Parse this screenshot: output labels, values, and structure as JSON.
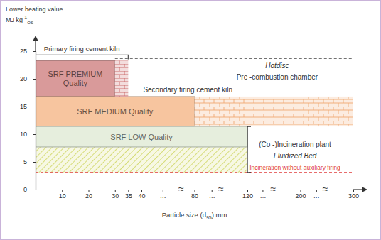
{
  "chart_data": {
    "type": "range",
    "ylabel": "Lower heating value",
    "yunit": {
      "text": "MJ kg",
      "sup": "-1",
      "sub": "OS"
    },
    "xlabel": {
      "text": "Particle size (d",
      "sub": "95",
      "after": ") mm"
    },
    "xlim": [
      0,
      300
    ],
    "ylim": [
      0,
      25
    ],
    "xticks": [
      10,
      20,
      30,
      35,
      40,
      {
        "value": 56,
        "label": "…"
      },
      80,
      {
        "value": 93,
        "label": "…"
      },
      120,
      {
        "value": 143,
        "label": "…"
      },
      200,
      {
        "value": 230,
        "label": "…"
      },
      300
    ],
    "yticks": [
      0,
      5,
      10,
      15,
      20,
      25
    ],
    "x_breaks": [
      {
        "value": 70,
        "label": "≈"
      },
      {
        "value": 100,
        "label": "≈"
      },
      {
        "value": 159,
        "label": "≈"
      },
      {
        "value": 247,
        "label": "≈"
      }
    ],
    "series": [
      {
        "name": "SRF PREMIUM Quality",
        "type": "box",
        "color": "#d99a9a",
        "x": [
          0,
          30
        ],
        "values": [
          16.8,
          23.3
        ]
      },
      {
        "type": "brick",
        "color": "#c86464",
        "x": [
          30,
          35
        ],
        "values": [
          16.8,
          23.3
        ]
      },
      {
        "name": "SRF MEDIUM Quality",
        "type": "box",
        "color": "#f7c59f",
        "x": [
          0,
          80
        ],
        "values": [
          11.4,
          16.8
        ]
      },
      {
        "type": "brick",
        "color": "#f0a870",
        "x": [
          80,
          300
        ],
        "values": [
          11.4,
          16.8
        ]
      },
      {
        "name": "SRF LOW Quality",
        "type": "box",
        "color": "#e6eedd",
        "x": [
          0,
          120
        ],
        "values": [
          7.7,
          11.4
        ]
      },
      {
        "type": "hatch",
        "color": "#d6dc7a",
        "x": [
          0,
          120
        ],
        "values": [
          3.1,
          7.7
        ]
      },
      {
        "type": "line",
        "line_style": "dashed",
        "color": "#444444",
        "x": [
          30,
          300,
          300
        ],
        "values": [
          23.7,
          23.7,
          3.1
        ]
      },
      {
        "name": "Incineration without auxiliary firing",
        "type": "line",
        "line_style": "dashed",
        "color": "#e03c3c",
        "x": [
          0,
          300
        ],
        "values": [
          3.1,
          3.1
        ]
      },
      {
        "name": "Primary firing cement kiln",
        "type": "bracket",
        "color": "#555555",
        "x": [
          0,
          35
        ],
        "values": [
          24.3,
          24.3
        ]
      },
      {
        "type": "bracket",
        "color": "#333333",
        "x": [
          120,
          120
        ],
        "values": [
          11.4,
          3.1
        ]
      }
    ],
    "annotations": [
      {
        "text": "Secondary firing cement kiln",
        "x": 75,
        "y": 17.6
      },
      {
        "text": "Hotdisc",
        "x": 165,
        "y": 21.9
      },
      {
        "text": "Pre -combustion chamber",
        "x": 165,
        "y": 19.9
      },
      {
        "text": "(Co -)Incineration plant",
        "x": 192,
        "y": 7.7
      },
      {
        "text": "Fluidized Bed",
        "x": 192,
        "y": 5.6
      }
    ]
  }
}
